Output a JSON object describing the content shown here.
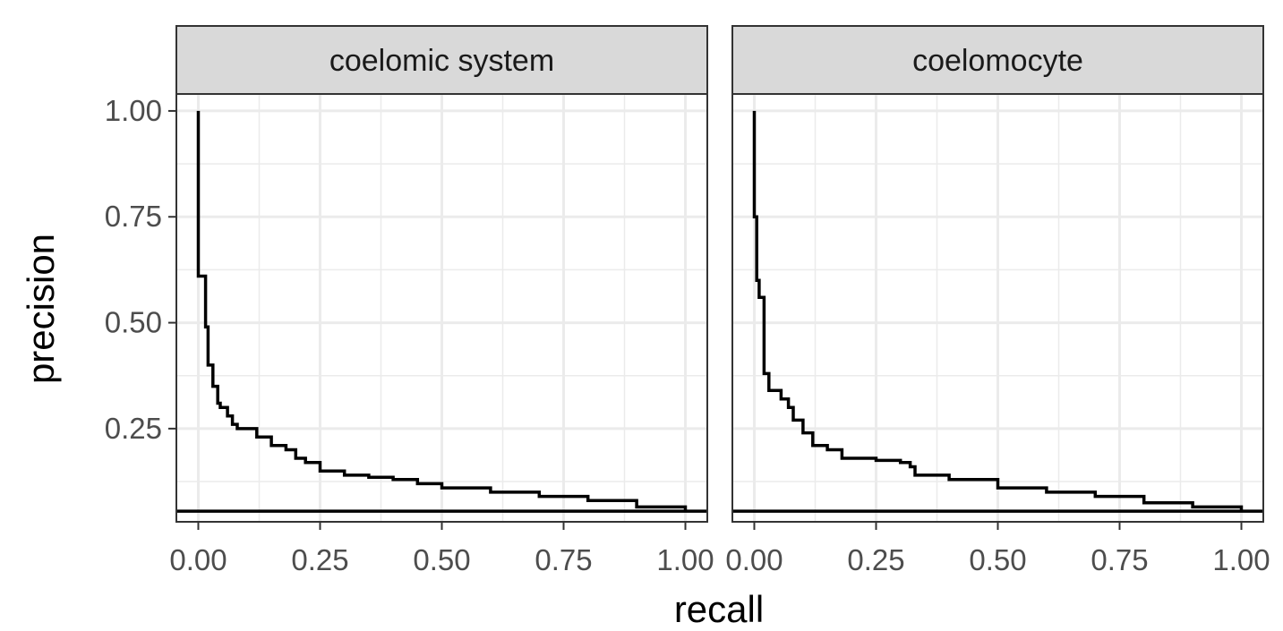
{
  "chart_data": {
    "type": "line",
    "facet_by": "panel",
    "xlabel": "recall",
    "ylabel": "precision",
    "xlim": [
      -0.045,
      1.045
    ],
    "ylim": [
      0.03,
      1.04
    ],
    "x_ticks": [
      0,
      0.25,
      0.5,
      0.75,
      1.0
    ],
    "x_tick_labels": [
      "0.00",
      "0.25",
      "0.50",
      "0.75",
      "1.00"
    ],
    "y_ticks": [
      0.25,
      0.5,
      0.75,
      1.0
    ],
    "y_tick_labels": [
      "0.25",
      "0.50",
      "0.75",
      "1.00"
    ],
    "grid": true,
    "theme": "bw",
    "line_color": "#000000",
    "strip_fill": "#d9d9d9",
    "panels": [
      {
        "strip_label": "coelomic system",
        "baseline_precision": 0.055,
        "x": [
          0.0,
          0.0,
          0.0,
          0.015,
          0.015,
          0.02,
          0.02,
          0.03,
          0.03,
          0.04,
          0.04,
          0.045,
          0.05,
          0.06,
          0.07,
          0.08,
          0.08,
          0.12,
          0.15,
          0.18,
          0.2,
          0.22,
          0.25,
          0.3,
          0.35,
          0.4,
          0.45,
          0.5,
          0.6,
          0.7,
          0.8,
          0.9,
          1.0
        ],
        "y": [
          1.0,
          0.61,
          0.61,
          0.61,
          0.49,
          0.45,
          0.4,
          0.4,
          0.35,
          0.32,
          0.31,
          0.3,
          0.3,
          0.28,
          0.26,
          0.25,
          0.25,
          0.23,
          0.21,
          0.2,
          0.18,
          0.17,
          0.15,
          0.14,
          0.135,
          0.13,
          0.12,
          0.11,
          0.1,
          0.09,
          0.08,
          0.065,
          0.055
        ]
      },
      {
        "strip_label": "coelomocyte",
        "baseline_precision": 0.055,
        "x": [
          0.0,
          0.0,
          0.005,
          0.005,
          0.01,
          0.01,
          0.02,
          0.02,
          0.03,
          0.03,
          0.05,
          0.055,
          0.06,
          0.07,
          0.08,
          0.1,
          0.12,
          0.15,
          0.18,
          0.25,
          0.3,
          0.32,
          0.33,
          0.4,
          0.5,
          0.6,
          0.7,
          0.8,
          0.9,
          1.0
        ],
        "y": [
          1.0,
          0.75,
          0.7,
          0.6,
          0.57,
          0.56,
          0.45,
          0.38,
          0.34,
          0.34,
          0.34,
          0.32,
          0.32,
          0.3,
          0.27,
          0.24,
          0.21,
          0.2,
          0.18,
          0.175,
          0.17,
          0.16,
          0.14,
          0.13,
          0.11,
          0.1,
          0.09,
          0.075,
          0.065,
          0.055
        ]
      }
    ]
  }
}
